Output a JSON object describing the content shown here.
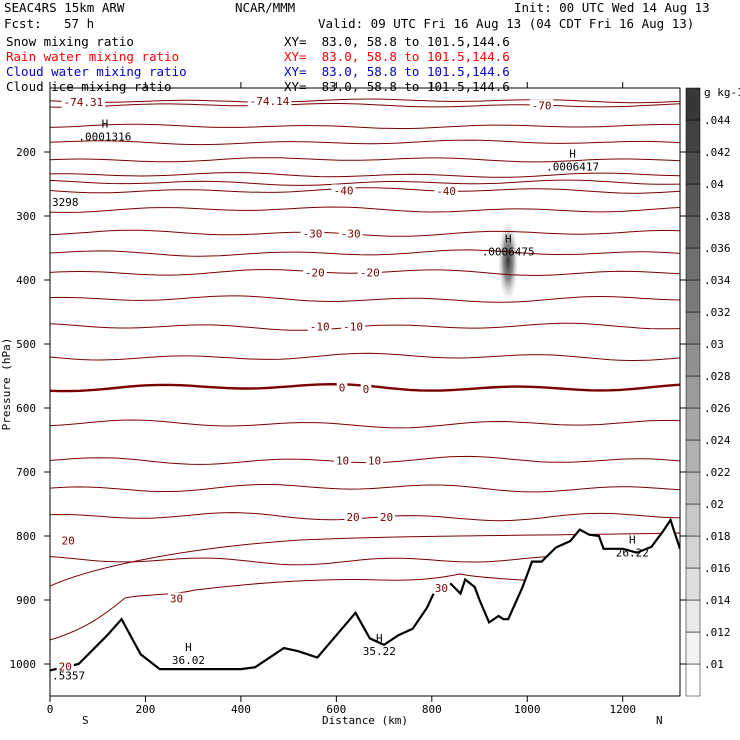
{
  "header": {
    "model": "SEAC4RS 15km ARW",
    "center": "NCAR/MMM",
    "init": "Init: 00 UTC Wed 14 Aug 13",
    "fcst_label": "Fcst:",
    "fcst_value": "57 h",
    "valid": "Valid: 09 UTC Fri 16 Aug 13 (04 CDT Fri 16 Aug 13)",
    "fields": [
      {
        "name": "Snow mixing ratio",
        "xy": "XY=  83.0, 58.8 to 101.5,144.6",
        "color": "#000000"
      },
      {
        "name": "Rain water mixing ratio",
        "xy": "XY=  83.0, 58.8 to 101.5,144.6",
        "color": "#ff0000"
      },
      {
        "name": "Cloud water mixing ratio",
        "xy": "XY=  83.0, 58.8 to 101.5,144.6",
        "color": "#0000cc"
      },
      {
        "name": "Cloud ice mixing ratio",
        "xy": "XY=  83.0, 58.8 to 101.5,144.6",
        "color": "#000000"
      }
    ]
  },
  "chart_data": {
    "type": "cross-section",
    "xlabel": "Distance (km)",
    "ylabel": "Pressure (hPa)",
    "xlim": [
      0,
      1320
    ],
    "ylim": [
      1050,
      100
    ],
    "x_ticks": [
      0,
      200,
      400,
      600,
      800,
      1000,
      1200
    ],
    "y_ticks": [
      200,
      300,
      400,
      500,
      600,
      700,
      800,
      900,
      1000
    ],
    "x_end_labels": {
      "left": "S",
      "right": "N"
    },
    "temperature_contours": {
      "color": "#7a0000",
      "interval": 5,
      "labels": [
        {
          "text": "-74.31",
          "x": 70,
          "p": 122
        },
        {
          "text": "-74.14",
          "x": 460,
          "p": 120
        },
        {
          "text": "-70",
          "x": 1030,
          "p": 127
        },
        {
          "text": "-40",
          "x": 615,
          "p": 260
        },
        {
          "text": "-40",
          "x": 830,
          "p": 261
        },
        {
          "text": "-30",
          "x": 550,
          "p": 327
        },
        {
          "text": "-30",
          "x": 630,
          "p": 327
        },
        {
          "text": "-20",
          "x": 555,
          "p": 388
        },
        {
          "text": "-20",
          "x": 670,
          "p": 388
        },
        {
          "text": "-10",
          "x": 565,
          "p": 473
        },
        {
          "text": "-10",
          "x": 635,
          "p": 473
        },
        {
          "text": "0",
          "x": 612,
          "p": 568
        },
        {
          "text": "0",
          "x": 662,
          "p": 570
        },
        {
          "text": "10",
          "x": 613,
          "p": 682
        },
        {
          "text": "10",
          "x": 680,
          "p": 682
        },
        {
          "text": "20",
          "x": 635,
          "p": 770
        },
        {
          "text": "20",
          "x": 705,
          "p": 770
        },
        {
          "text": "20",
          "x": 38,
          "p": 807
        },
        {
          "text": "30",
          "x": 265,
          "p": 898
        },
        {
          "text": "30",
          "x": 820,
          "p": 881
        },
        {
          "text": "20",
          "x": 32,
          "p": 1004
        }
      ]
    },
    "extrema": [
      {
        "symbol": "H",
        "value": ".0001316",
        "x": 115,
        "p": 168
      },
      {
        "symbol": "H",
        "value": ".0006417",
        "x": 1095,
        "p": 215
      },
      {
        "symbol": "H",
        "value": ".0006475",
        "x": 960,
        "p": 348
      },
      {
        "symbol": "H",
        "value": "36.02",
        "x": 290,
        "p": 986
      },
      {
        "symbol": "H",
        "value": "35.22",
        "x": 690,
        "p": 972
      },
      {
        "symbol": "H",
        "value": "26.22",
        "x": 1220,
        "p": 818
      }
    ],
    "edge_labels": [
      {
        "text": "3298",
        "x": 0,
        "p": 278
      },
      {
        "text": ".5357",
        "x": 0,
        "p": 1018
      }
    ],
    "terrain": {
      "x": [
        0,
        60,
        120,
        150,
        190,
        230,
        300,
        400,
        430,
        470,
        490,
        520,
        560,
        600,
        640,
        670,
        700,
        730,
        760,
        790,
        810,
        840,
        860,
        870,
        890,
        900,
        920,
        940,
        950,
        960,
        990,
        1010,
        1030,
        1060,
        1090,
        1110,
        1130,
        1150,
        1160,
        1200,
        1230,
        1260,
        1285,
        1300,
        1320
      ],
      "p": [
        1010,
        1000,
        955,
        930,
        985,
        1008,
        1008,
        1008,
        1005,
        985,
        975,
        980,
        990,
        955,
        920,
        960,
        970,
        955,
        945,
        912,
        880,
        875,
        890,
        868,
        880,
        900,
        935,
        925,
        930,
        930,
        880,
        840,
        840,
        818,
        808,
        790,
        798,
        800,
        820,
        820,
        826,
        817,
        792,
        775,
        820
      ]
    },
    "mixing_ratio_shading": {
      "field": "cloud ice mixing ratio",
      "center_x": 960,
      "center_p": 370,
      "max_value": 0.0006475
    },
    "colorbar": {
      "unit": "g kg-1",
      "ticks": [
        ".01",
        ".012",
        ".014",
        ".016",
        ".018",
        ".02",
        ".022",
        ".024",
        ".026",
        ".028",
        ".03",
        ".032",
        ".034",
        ".036",
        ".038",
        ".04",
        ".042",
        ".044"
      ]
    }
  }
}
